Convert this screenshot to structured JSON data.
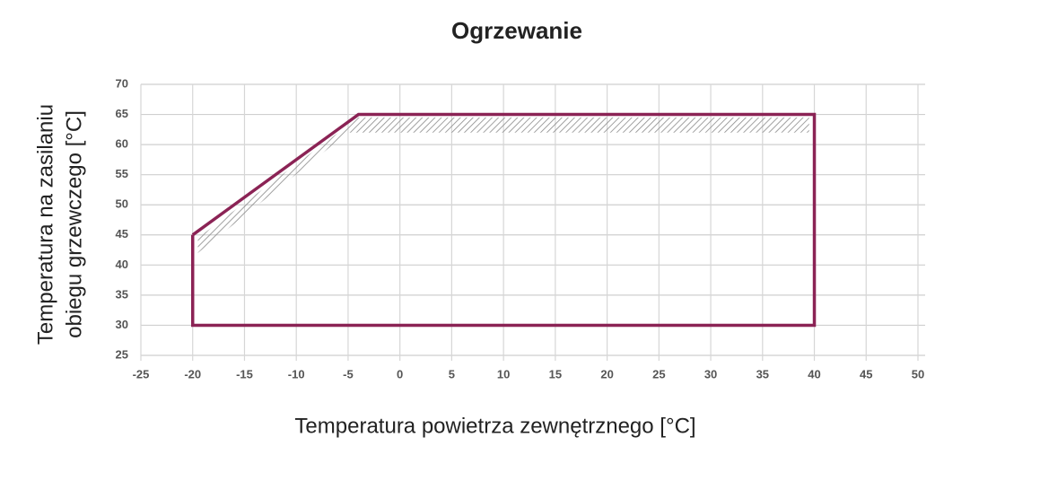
{
  "chart_data": {
    "type": "line",
    "title": "Ogrzewanie",
    "xlabel": "Temperatura powietrza zewnętrznego [°C]",
    "ylabel": [
      "Temperatura na zasilaniu",
      "obiegu grzewczego [°C]"
    ],
    "xlim": [
      -25,
      50
    ],
    "xticks": [
      -25,
      -20,
      -15,
      -10,
      -5,
      0,
      5,
      10,
      15,
      20,
      25,
      30,
      35,
      40,
      45,
      50
    ],
    "ylim": [
      25,
      70
    ],
    "yticks": [
      25,
      30,
      35,
      40,
      45,
      50,
      55,
      60,
      65,
      70
    ],
    "grid": true,
    "series": [
      {
        "color": "#8b2355",
        "x": [
          -20,
          -4,
          40,
          40,
          -20,
          -20
        ],
        "values": [
          45,
          65,
          65,
          30,
          30,
          45
        ]
      }
    ],
    "hatch": {
      "color": "#9a9a9a",
      "x": [
        -19.5,
        -4,
        39.5,
        39.5,
        -5,
        -19.5
      ],
      "values": [
        44.5,
        64.5,
        64.5,
        62,
        62,
        42
      ]
    }
  }
}
